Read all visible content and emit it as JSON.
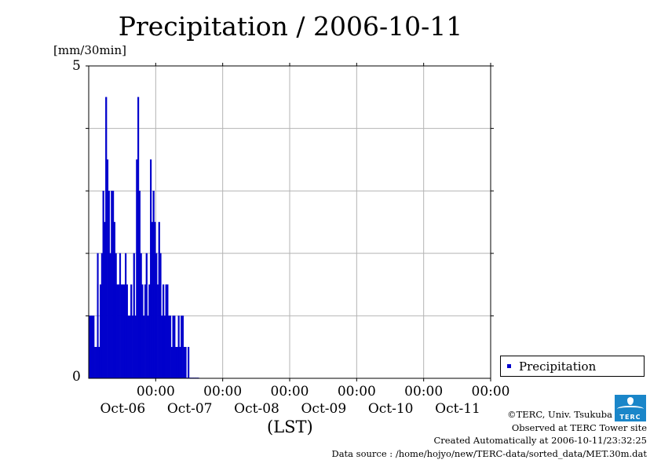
{
  "chart_data": {
    "type": "bar",
    "title": "Precipitation / 2006-10-11",
    "ylabel": "[mm/30min]",
    "xlabel": "(LST)",
    "ylim": [
      0,
      5
    ],
    "y_ticks": [
      "0",
      "5"
    ],
    "x_ticks": [
      {
        "time": "00:00",
        "date": "Oct-06"
      },
      {
        "time": "00:00",
        "date": "Oct-07"
      },
      {
        "time": "00:00",
        "date": "Oct-08"
      },
      {
        "time": "00:00",
        "date": "Oct-09"
      },
      {
        "time": "00:00",
        "date": "Oct-10"
      },
      {
        "time": "00:00",
        "date": "Oct-11"
      }
    ],
    "x_range": [
      "2006-10-05 00:00",
      "2006-10-11 00:00"
    ],
    "x_interval": "30min",
    "grid": true,
    "legend": "bottom-right",
    "series": [
      {
        "name": "Precipitation",
        "color": "#0000cc",
        "values": [
          1,
          1,
          1,
          1,
          0.5,
          0.5,
          2,
          0.5,
          1.5,
          2,
          3,
          2.5,
          4.5,
          3.5,
          3,
          2,
          3,
          3,
          2.5,
          2,
          1.5,
          1.5,
          2,
          1.5,
          1.5,
          1.5,
          2,
          1.5,
          1,
          1,
          1.5,
          1,
          2,
          1,
          3.5,
          4.5,
          3,
          2,
          1.5,
          1,
          1.5,
          2,
          1,
          1.5,
          3.5,
          2.5,
          3,
          2.5,
          2,
          1.5,
          2.5,
          2,
          1,
          1.5,
          1,
          1.5,
          1.5,
          1,
          1,
          0.5,
          1,
          1,
          0.5,
          0.5,
          1,
          0.5,
          1,
          1,
          0.5,
          0.5,
          0,
          0.5,
          0,
          0,
          0,
          0,
          0,
          0,
          0
        ]
      }
    ]
  },
  "legend": {
    "label": "Precipitation"
  },
  "credits": {
    "copyright": "©TERC, Univ. Tsukuba",
    "observed": "Observed at TERC Tower site",
    "created": "Created Automatically at 2006-10-11/23:32:25",
    "source": "Data source : /home/hojyo/new/TERC-data/sorted_data/MET.30m.dat",
    "logo_text": "TERC"
  }
}
